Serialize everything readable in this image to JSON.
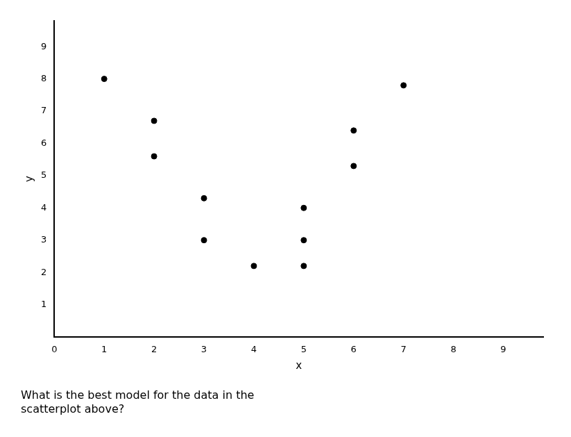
{
  "chart_data": {
    "type": "scatter",
    "x": [
      1,
      2,
      2,
      3,
      3,
      4,
      5,
      5,
      5,
      6,
      6,
      7
    ],
    "values": [
      8,
      6.7,
      5.6,
      4.3,
      3.0,
      2.2,
      2.2,
      3.0,
      4.0,
      5.3,
      6.4,
      7.8
    ],
    "color": "#000000",
    "xlabel": "x",
    "ylabel": "y",
    "xlim": [
      0,
      9.8
    ],
    "ylim": [
      0,
      9.8
    ],
    "xticks": [
      0,
      1,
      2,
      3,
      4,
      5,
      6,
      7,
      8,
      9
    ],
    "yticks": [
      1,
      2,
      3,
      4,
      5,
      6,
      7,
      8,
      9
    ],
    "grid": false,
    "annotations": [
      "What is the best model for the data in the",
      "scatterplot above?"
    ]
  }
}
